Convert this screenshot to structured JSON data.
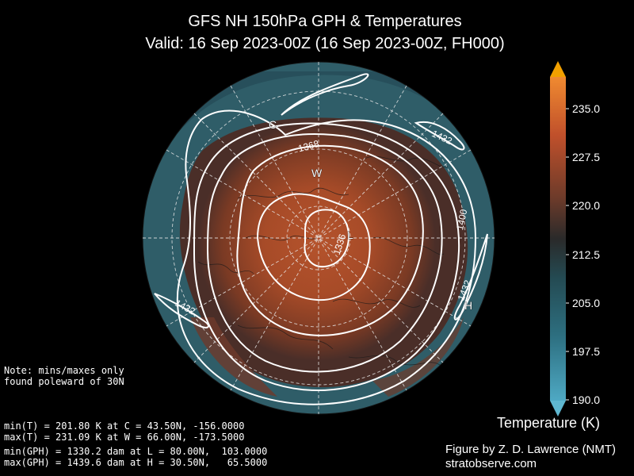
{
  "title": {
    "line1": "GFS NH 150hPa GPH & Temperatures",
    "line2": "Valid: 16 Sep 2023-00Z  (16 Sep 2023-00Z, FH000)"
  },
  "map": {
    "contour_labels": [
      {
        "id": "c1368",
        "text": "1368"
      },
      {
        "id": "c1336",
        "text": "1336"
      },
      {
        "id": "c1400",
        "text": "1400"
      },
      {
        "id": "c1432a",
        "text": "1432"
      },
      {
        "id": "c1432b",
        "text": "1432"
      },
      {
        "id": "c1432c",
        "text": "1432"
      }
    ],
    "markers": [
      {
        "id": "C",
        "text": "C"
      },
      {
        "id": "W",
        "text": "W"
      },
      {
        "id": "L",
        "text": "L"
      },
      {
        "id": "H",
        "text": "H"
      }
    ]
  },
  "colorbar": {
    "label": "Temperature (K)",
    "min": 190.0,
    "max": 237.5,
    "ticks": [
      "235.0",
      "227.5",
      "220.0",
      "212.5",
      "205.0",
      "197.5",
      "190.0"
    ],
    "low_color": "#5fb7d0",
    "high_color": "#f2a000"
  },
  "notes": {
    "line1": "Note: mins/maxes only",
    "line2": "found poleward of 30N"
  },
  "stats": {
    "min_t": "min(T) = 201.80 K at C = 43.50N, -156.0000",
    "max_t": "max(T) = 231.09 K at W = 66.00N, -173.5000",
    "min_gph": "min(GPH) = 1330.2 dam at L = 80.00N,  103.0000",
    "max_gph": "max(GPH) = 1439.6 dam at H = 30.50N,   65.5000"
  },
  "credit": {
    "line1": "Figure by Z. D. Lawrence (NMT)",
    "line2": "stratobserve.com"
  }
}
